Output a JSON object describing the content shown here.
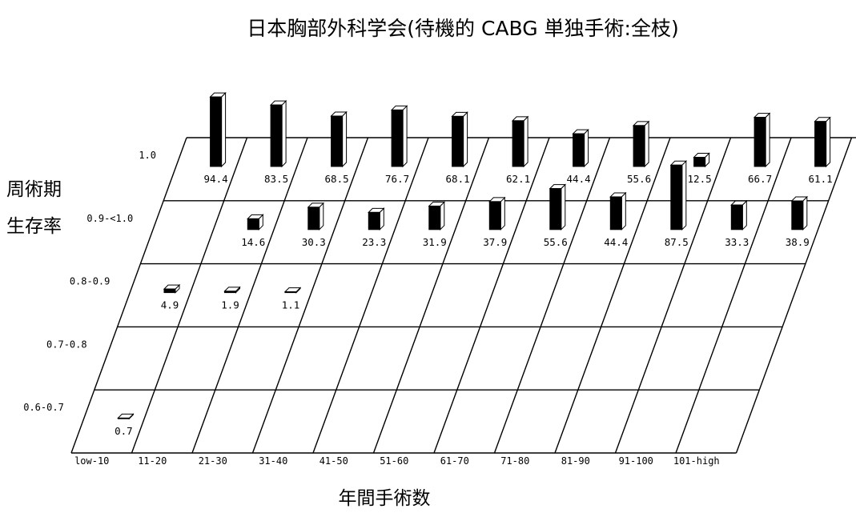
{
  "chart_data": {
    "type": "bar",
    "title": "日本胸部外科学会(待機的 CABG 単独手術:全枝)",
    "xlabel": "年間手術数",
    "ylabel_lines": [
      "周術期",
      "生存率"
    ],
    "categories": [
      "low-10",
      "11-20",
      "21-30",
      "31-40",
      "41-50",
      "51-60",
      "61-70",
      "71-80",
      "81-90",
      "91-100",
      "101-high"
    ],
    "rows": [
      "1.0",
      "0.9-<1.0",
      "0.8-0.9",
      "0.7-0.8",
      "0.6-0.7"
    ],
    "values": [
      [
        94.4,
        83.5,
        68.5,
        76.7,
        68.1,
        62.1,
        44.4,
        55.6,
        12.5,
        66.7,
        61.1
      ],
      [
        null,
        14.6,
        30.3,
        23.3,
        31.9,
        37.9,
        55.6,
        44.4,
        87.5,
        33.3,
        38.9
      ],
      [
        4.9,
        1.9,
        1.1,
        null,
        null,
        null,
        null,
        null,
        null,
        null,
        null
      ],
      [
        null,
        null,
        null,
        null,
        null,
        null,
        null,
        null,
        null,
        null,
        null
      ],
      [
        0.7,
        null,
        null,
        null,
        null,
        null,
        null,
        null,
        null,
        null,
        null
      ]
    ],
    "value_labels": [
      [
        "94.4",
        "83.5",
        "68.5",
        "76.7",
        "68.1",
        "62.1",
        "44.4",
        "55.6",
        "12.5",
        "66.7",
        "61.1"
      ],
      [
        null,
        "14.6",
        "30.3",
        "23.3",
        "31.9",
        "37.9",
        "55.6",
        "44.4",
        "87.5",
        "33.3",
        "38.9"
      ],
      [
        "4.9",
        "1.9",
        "1.1",
        null,
        null,
        null,
        null,
        null,
        null,
        null,
        null
      ],
      [
        null,
        null,
        null,
        null,
        null,
        null,
        null,
        null,
        null,
        null,
        null
      ],
      [
        "0.7",
        null,
        null,
        null,
        null,
        null,
        null,
        null,
        null,
        null,
        null
      ]
    ],
    "bar_color": "#000000",
    "face_color": "#ffffff"
  }
}
